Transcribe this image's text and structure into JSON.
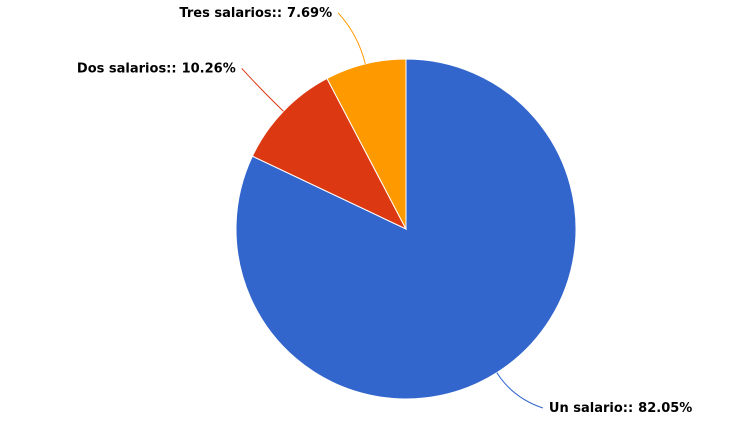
{
  "chart_data": {
    "type": "pie",
    "categories": [
      "Un salario::",
      "Dos salarios::",
      "Tres salarios::"
    ],
    "values": [
      82.05,
      10.26,
      7.69
    ],
    "value_labels": [
      "82.05%",
      "10.26%",
      "7.69%"
    ],
    "colors": [
      "#3366cc",
      "#dc3912",
      "#ff9900"
    ]
  }
}
